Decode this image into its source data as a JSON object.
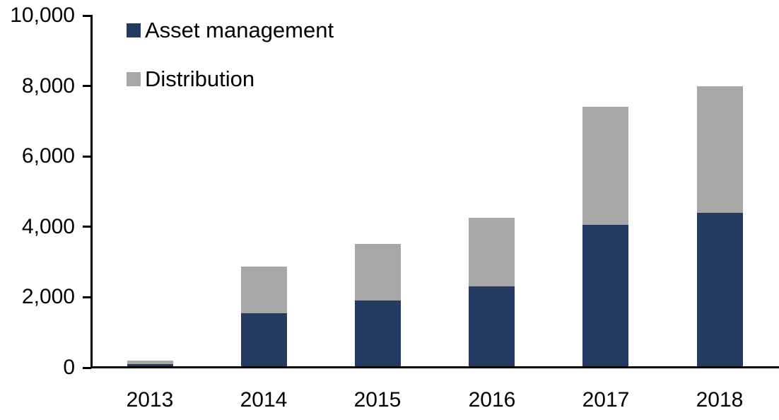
{
  "chart_data": {
    "type": "bar",
    "stacked": true,
    "title": "",
    "xlabel": "",
    "ylabel": "",
    "categories": [
      "2013",
      "2014",
      "2015",
      "2016",
      "2017",
      "2018"
    ],
    "series": [
      {
        "name": "Asset management",
        "color": "#233A63",
        "values": [
          100,
          1550,
          1900,
          2300,
          4050,
          4400
        ]
      },
      {
        "name": "Distribution",
        "color": "#A8A8A8",
        "values": [
          100,
          1330,
          1600,
          1950,
          3350,
          3600
        ]
      }
    ],
    "ylim": [
      0,
      10000
    ],
    "ytick_interval": 2000,
    "ytick_labels": [
      "0",
      "2,000",
      "4,000",
      "6,000",
      "8,000",
      "10,000"
    ],
    "grid": false,
    "legend_position": "top-left-inside",
    "axis_color": "#000000",
    "text_color": "#000000",
    "background_color": "#FFFFFF"
  }
}
